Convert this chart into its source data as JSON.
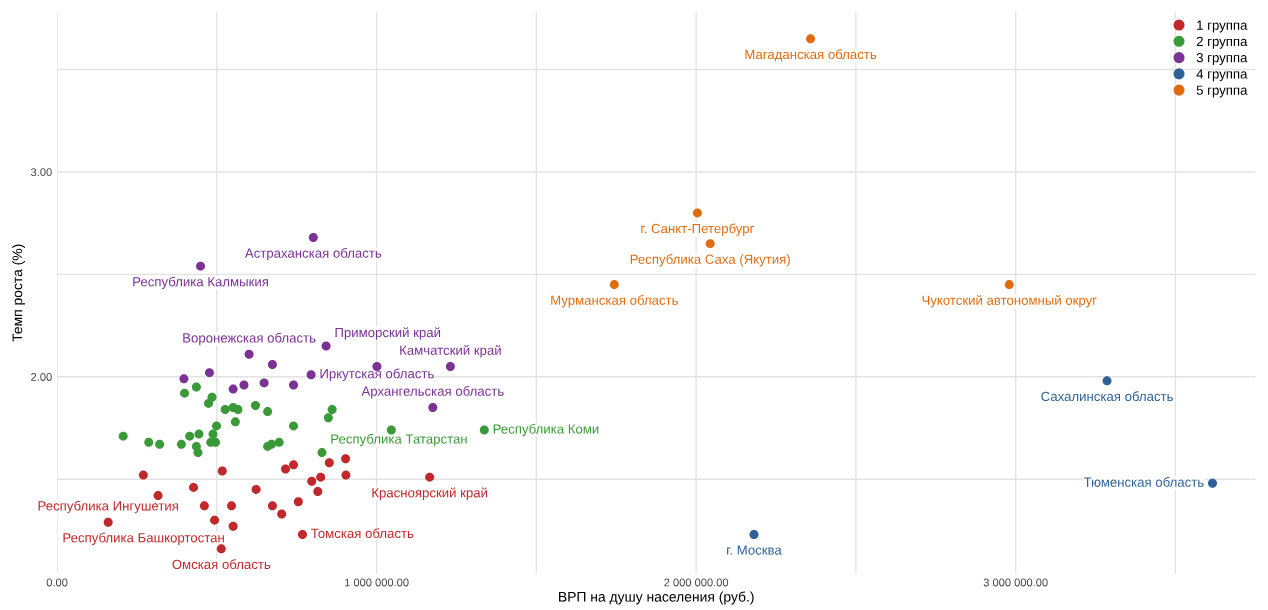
{
  "chart_data": {
    "type": "scatter",
    "xlabel": "ВРП на душу населения (руб.)",
    "ylabel": "Темп роста (%)",
    "xlim": [
      0,
      3750000
    ],
    "ylim": [
      1.04,
      3.78
    ],
    "xticks": [
      {
        "value": 0,
        "label": "0.00"
      },
      {
        "value": 500000,
        "label": null
      },
      {
        "value": 1000000,
        "label": "1 000 000.00"
      },
      {
        "value": 1500000,
        "label": null
      },
      {
        "value": 2000000,
        "label": "2 000 000.00"
      },
      {
        "value": 2500000,
        "label": null
      },
      {
        "value": 3000000,
        "label": "3 000 000.00"
      },
      {
        "value": 3500000,
        "label": null
      }
    ],
    "yticks": [
      {
        "value": 1.5,
        "label": null
      },
      {
        "value": 2,
        "label": "2.00"
      },
      {
        "value": 2.5,
        "label": null
      },
      {
        "value": 3,
        "label": "3.00"
      },
      {
        "value": 3.5,
        "label": null
      }
    ],
    "grid": true,
    "legend": "top right",
    "marker": "circle",
    "series": [
      {
        "name": "1 группа",
        "color": "#c0282b",
        "x": [
          270000,
          316000,
          160000,
          427000,
          517000,
          461000,
          546000,
          493000,
          551000,
          514000,
          623000,
          674000,
          703000,
          755000,
          768000,
          715000,
          740000,
          797000,
          825000,
          816000,
          852000,
          903000,
          904000,
          1166000
        ],
        "values": [
          1.52,
          1.42,
          1.29,
          1.46,
          1.54,
          1.37,
          1.37,
          1.3,
          1.27,
          1.16,
          1.45,
          1.37,
          1.33,
          1.39,
          1.23,
          1.55,
          1.57,
          1.49,
          1.51,
          1.44,
          1.58,
          1.6,
          1.52,
          1.51
        ],
        "value_labels": [
          null,
          null,
          "Республика Ингушетия",
          null,
          null,
          null,
          null,
          null,
          "Республика Башкортостан",
          "Омская область",
          null,
          null,
          null,
          null,
          "Томская область",
          null,
          null,
          null,
          null,
          null,
          null,
          null,
          null,
          "Красноярский край"
        ]
      },
      {
        "name": "2 группа",
        "color": "#3a9a38",
        "x": [
          399000,
          436000,
          485000,
          474000,
          526000,
          551000,
          566000,
          621000,
          659000,
          558000,
          499000,
          488000,
          444000,
          415000,
          207000,
          287000,
          321000,
          389000,
          436000,
          441000,
          481000,
          496000,
          659000,
          671000,
          695000,
          740000,
          849000,
          861000,
          829000,
          1046000,
          1337000
        ],
        "values": [
          1.92,
          1.95,
          1.9,
          1.87,
          1.84,
          1.85,
          1.84,
          1.86,
          1.83,
          1.78,
          1.76,
          1.72,
          1.72,
          1.71,
          1.71,
          1.68,
          1.67,
          1.67,
          1.66,
          1.63,
          1.68,
          1.68,
          1.66,
          1.67,
          1.68,
          1.76,
          1.8,
          1.84,
          1.63,
          1.74,
          1.74
        ],
        "value_labels": [
          null,
          null,
          null,
          null,
          null,
          null,
          null,
          null,
          null,
          null,
          null,
          null,
          null,
          null,
          null,
          null,
          null,
          null,
          null,
          null,
          null,
          null,
          null,
          null,
          null,
          null,
          null,
          null,
          "Республика Татарстан",
          null,
          "Республика Коми"
        ]
      },
      {
        "name": "3 группа",
        "color": "#7b3294",
        "x": [
          601000,
          674000,
          842000,
          1001000,
          1231000,
          397000,
          477000,
          551000,
          585000,
          648000,
          740000,
          795000,
          1176000,
          449000,
          802000
        ],
        "values": [
          2.11,
          2.06,
          2.15,
          2.05,
          2.05,
          1.99,
          2.02,
          1.94,
          1.96,
          1.97,
          1.96,
          2.01,
          1.85,
          2.54,
          2.68
        ],
        "value_labels": [
          "Воронежская область",
          null,
          "Приморский край",
          null,
          "Камчатский край",
          null,
          null,
          null,
          null,
          null,
          null,
          "Иркутская область",
          "Архангельская область",
          "Республика Калмыкия",
          "Астраханская область"
        ]
      },
      {
        "name": "4 группа",
        "color": "#2e6196",
        "x": [
          2181000,
          3286000,
          3616000
        ],
        "values": [
          1.23,
          1.98,
          1.48
        ],
        "value_labels": [
          "г. Москва",
          "Сахалинская область",
          "Тюменская область"
        ]
      },
      {
        "name": "5 группа",
        "color": "#e06c10",
        "x": [
          2358000,
          2004000,
          2044000,
          1744000,
          2980000
        ],
        "values": [
          3.65,
          2.8,
          2.65,
          2.45,
          2.45
        ],
        "value_labels": [
          "Магаданская область",
          "г. Санкт-Петербург",
          "Республика Саха (Якутия)",
          "Мурманская область",
          "Чукотский автономный округ"
        ]
      }
    ]
  }
}
